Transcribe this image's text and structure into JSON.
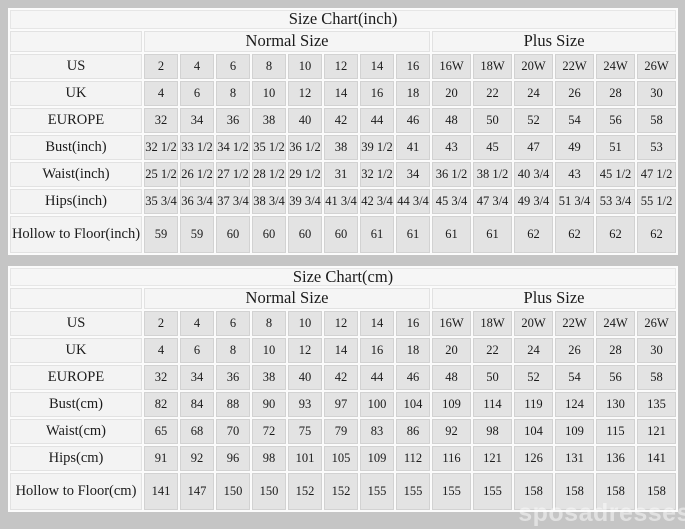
{
  "watermark": "sposadresses",
  "tables": [
    {
      "title": "Size Chart(inch)",
      "group_headers": {
        "normal": "Normal Size",
        "plus": "Plus Size"
      },
      "rows": [
        {
          "label": "US",
          "values": [
            "2",
            "4",
            "6",
            "8",
            "10",
            "12",
            "14",
            "16",
            "16W",
            "18W",
            "20W",
            "22W",
            "24W",
            "26W"
          ]
        },
        {
          "label": "UK",
          "values": [
            "4",
            "6",
            "8",
            "10",
            "12",
            "14",
            "16",
            "18",
            "20",
            "22",
            "24",
            "26",
            "28",
            "30"
          ]
        },
        {
          "label": "EUROPE",
          "values": [
            "32",
            "34",
            "36",
            "38",
            "40",
            "42",
            "44",
            "46",
            "48",
            "50",
            "52",
            "54",
            "56",
            "58"
          ]
        },
        {
          "label": "Bust(inch)",
          "values": [
            "32 1/2",
            "33 1/2",
            "34 1/2",
            "35 1/2",
            "36 1/2",
            "38",
            "39 1/2",
            "41",
            "43",
            "45",
            "47",
            "49",
            "51",
            "53"
          ]
        },
        {
          "label": "Waist(inch)",
          "values": [
            "25 1/2",
            "26 1/2",
            "27 1/2",
            "28 1/2",
            "29 1/2",
            "31",
            "32 1/2",
            "34",
            "36 1/2",
            "38 1/2",
            "40 3/4",
            "43",
            "45 1/2",
            "47 1/2"
          ]
        },
        {
          "label": "Hips(inch)",
          "values": [
            "35 3/4",
            "36 3/4",
            "37 3/4",
            "38 3/4",
            "39 3/4",
            "41 3/4",
            "42 3/4",
            "44 3/4",
            "45 3/4",
            "47 3/4",
            "49 3/4",
            "51 3/4",
            "53 3/4",
            "55 1/2"
          ]
        },
        {
          "label": "Hollow to Floor(inch)",
          "values": [
            "59",
            "59",
            "60",
            "60",
            "60",
            "60",
            "61",
            "61",
            "61",
            "61",
            "62",
            "62",
            "62",
            "62"
          ]
        }
      ]
    },
    {
      "title": "Size Chart(cm)",
      "group_headers": {
        "normal": "Normal Size",
        "plus": "Plus Size"
      },
      "rows": [
        {
          "label": "US",
          "values": [
            "2",
            "4",
            "6",
            "8",
            "10",
            "12",
            "14",
            "16",
            "16W",
            "18W",
            "20W",
            "22W",
            "24W",
            "26W"
          ]
        },
        {
          "label": "UK",
          "values": [
            "4",
            "6",
            "8",
            "10",
            "12",
            "14",
            "16",
            "18",
            "20",
            "22",
            "24",
            "26",
            "28",
            "30"
          ]
        },
        {
          "label": "EUROPE",
          "values": [
            "32",
            "34",
            "36",
            "38",
            "40",
            "42",
            "44",
            "46",
            "48",
            "50",
            "52",
            "54",
            "56",
            "58"
          ]
        },
        {
          "label": "Bust(cm)",
          "values": [
            "82",
            "84",
            "88",
            "90",
            "93",
            "97",
            "100",
            "104",
            "109",
            "114",
            "119",
            "124",
            "130",
            "135"
          ]
        },
        {
          "label": "Waist(cm)",
          "values": [
            "65",
            "68",
            "70",
            "72",
            "75",
            "79",
            "83",
            "86",
            "92",
            "98",
            "104",
            "109",
            "115",
            "121"
          ]
        },
        {
          "label": "Hips(cm)",
          "values": [
            "91",
            "92",
            "96",
            "98",
            "101",
            "105",
            "109",
            "112",
            "116",
            "121",
            "126",
            "131",
            "136",
            "141"
          ]
        },
        {
          "label": "Hollow to Floor(cm)",
          "values": [
            "141",
            "147",
            "150",
            "150",
            "152",
            "152",
            "155",
            "155",
            "155",
            "155",
            "158",
            "158",
            "158",
            "158"
          ]
        }
      ]
    }
  ]
}
